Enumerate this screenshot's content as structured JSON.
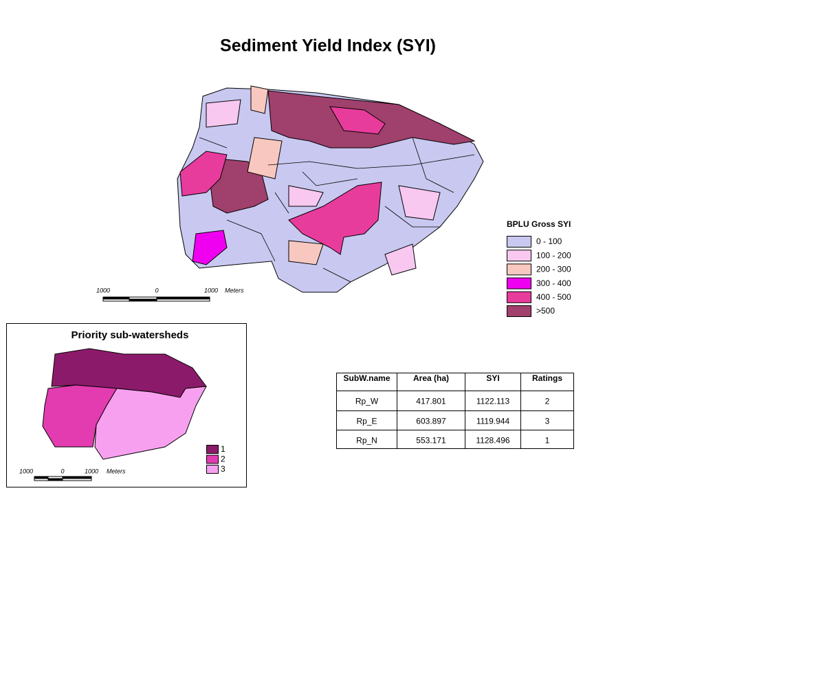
{
  "title": "Sediment Yield Index (SYI)",
  "map": {
    "scale_bar": {
      "labels": [
        "1000",
        "0",
        "1000"
      ],
      "unit": "Meters"
    },
    "legend": {
      "title": "BPLU Gross SYI",
      "items": [
        {
          "label": "0 - 100",
          "color": "#c8c8f0"
        },
        {
          "label": "100 - 200",
          "color": "#f8c8f0"
        },
        {
          "label": "200 - 300",
          "color": "#f8c8c0"
        },
        {
          "label": "300 - 400",
          "color": "#f000f0"
        },
        {
          "label": "400 - 500",
          "color": "#e83c9c"
        },
        {
          "label": ">500",
          "color": "#a0406c"
        }
      ]
    }
  },
  "inset": {
    "title": "Priority sub-watersheds",
    "legend": {
      "items": [
        {
          "label": "1",
          "color": "#8c1a6a"
        },
        {
          "label": "2",
          "color": "#e23cb0"
        },
        {
          "label": "3",
          "color": "#f8a0f0"
        }
      ]
    },
    "scale_bar": {
      "labels": [
        "1000",
        "0",
        "1000"
      ],
      "unit": "Meters"
    }
  },
  "table": {
    "headers": [
      "SubW.name",
      "Area (ha)",
      "SYI",
      "Ratings"
    ],
    "rows": [
      [
        "Rp_W",
        "417.801",
        "1122.113",
        "2"
      ],
      [
        "Rp_E",
        "603.897",
        "1119.944",
        "3"
      ],
      [
        "Rp_N",
        "553.171",
        "1128.496",
        "1"
      ]
    ]
  }
}
